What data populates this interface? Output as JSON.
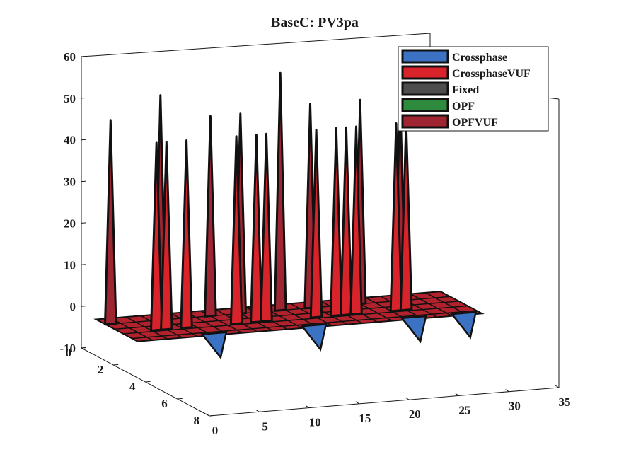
{
  "chart_data": {
    "type": "3d-bar",
    "title": "BaseC: PV3pa",
    "xlabel": "",
    "ylabel": "",
    "zlabel": "",
    "xlim": [
      0,
      35
    ],
    "ylim": [
      0,
      8
    ],
    "zlim": [
      -10,
      60
    ],
    "x_ticks": [
      0,
      5,
      10,
      15,
      20,
      25,
      30,
      35
    ],
    "y_ticks": [
      0,
      2,
      4,
      6,
      8
    ],
    "z_ticks": [
      -10,
      0,
      10,
      20,
      30,
      40,
      50,
      60
    ],
    "grid": false,
    "legend_position": "top-right",
    "series": [
      {
        "name": "Crossphase",
        "color": "#3b72c4",
        "y": 1,
        "peaks": [
          {
            "x": 8.5,
            "z": -3
          },
          {
            "x": 18.5,
            "z": -3
          },
          {
            "x": 28.5,
            "z": -3
          },
          {
            "x": 33.5,
            "z": -3
          }
        ]
      },
      {
        "name": "CrossphaseVUF",
        "color": "#d8232a",
        "y": 2,
        "peaks": [
          {
            "x": 4,
            "z": 43
          },
          {
            "x": 5,
            "z": 43
          },
          {
            "x": 7,
            "z": 43
          },
          {
            "x": 12,
            "z": 43
          },
          {
            "x": 14,
            "z": 43
          },
          {
            "x": 15,
            "z": 43
          },
          {
            "x": 20,
            "z": 43
          },
          {
            "x": 22,
            "z": 43
          },
          {
            "x": 23,
            "z": 43
          },
          {
            "x": 24,
            "z": 43
          },
          {
            "x": 28,
            "z": 43
          },
          {
            "x": 29,
            "z": 43
          }
        ]
      },
      {
        "name": "Fixed",
        "color": "#4d4d4d",
        "y": 3,
        "peaks": []
      },
      {
        "name": "OPF",
        "color": "#2e8b3d",
        "y": 4,
        "peaks": []
      },
      {
        "name": "OPFVUF",
        "color": "#9e2531",
        "y": 5,
        "peaks": [
          {
            "x": 1,
            "z": 47
          },
          {
            "x": 6,
            "z": 52
          },
          {
            "x": 11,
            "z": 46
          },
          {
            "x": 14,
            "z": 46
          },
          {
            "x": 18,
            "z": 55
          },
          {
            "x": 21,
            "z": 47
          },
          {
            "x": 26,
            "z": 47
          },
          {
            "x": 30,
            "z": 47
          }
        ]
      }
    ]
  }
}
